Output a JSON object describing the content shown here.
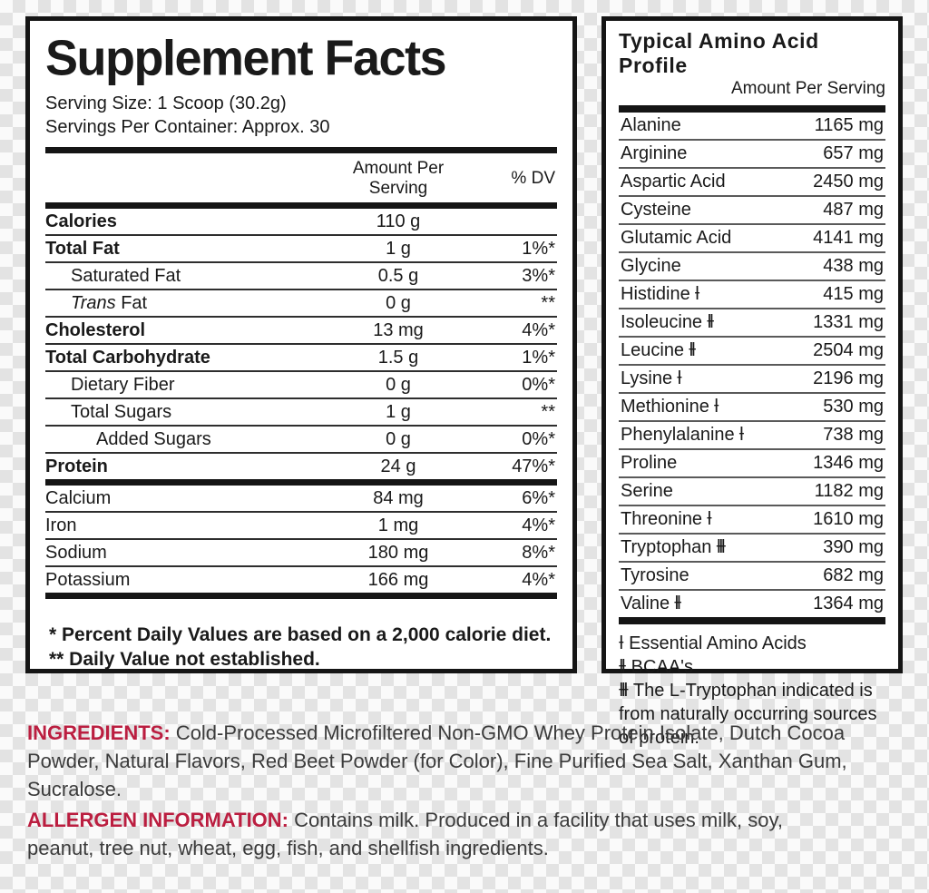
{
  "colors": {
    "accent_red": "#bb1e40",
    "ink": "#1a1a1a",
    "panel_bg": "#ffffff"
  },
  "supplement_facts": {
    "title": "Supplement Facts",
    "serving_size": "Serving Size: 1 Scoop (30.2g)",
    "servings_per_container": "Servings Per Container: Approx. 30",
    "col_amount_line1": "Amount Per",
    "col_amount_line2": "Serving",
    "col_dv": "% DV",
    "rows": [
      {
        "name": "Calories",
        "amount": "110 g",
        "dv": ""
      },
      {
        "name": "Total Fat",
        "amount": "1 g",
        "dv": "1%*"
      },
      {
        "name": "Saturated Fat",
        "amount": "0.5 g",
        "dv": "3%*"
      },
      {
        "name_italic": "Trans",
        "name": " Fat",
        "amount": "0 g",
        "dv": "**"
      },
      {
        "name": "Cholesterol",
        "amount": "13 mg",
        "dv": "4%*"
      },
      {
        "name": "Total Carbohydrate",
        "amount": "1.5 g",
        "dv": "1%*"
      },
      {
        "name": "Dietary Fiber",
        "amount": "0 g",
        "dv": "0%*"
      },
      {
        "name": "Total Sugars",
        "amount": "1 g",
        "dv": "**"
      },
      {
        "name": "Added Sugars",
        "amount": "0 g",
        "dv": "0%*"
      },
      {
        "name": "Protein",
        "amount": "24 g",
        "dv": "47%*"
      },
      {
        "name": "Calcium",
        "amount": "84 mg",
        "dv": "6%*"
      },
      {
        "name": "Iron",
        "amount": "1 mg",
        "dv": "4%*"
      },
      {
        "name": "Sodium",
        "amount": "180 mg",
        "dv": "8%*"
      },
      {
        "name": "Potassium",
        "amount": "166 mg",
        "dv": "4%*"
      }
    ],
    "footnote1": "* Percent Daily Values are based on a 2,000 calorie diet.",
    "footnote2": "** Daily Value not established."
  },
  "amino_profile": {
    "title": "Typical Amino Acid Profile",
    "subtitle": "Amount Per Serving",
    "rows": [
      {
        "name": "Alanine",
        "marker": "",
        "amount": "1165 mg"
      },
      {
        "name": "Arginine",
        "marker": "",
        "amount": "657 mg"
      },
      {
        "name": "Aspartic Acid",
        "marker": "",
        "amount": "2450 mg"
      },
      {
        "name": "Cysteine",
        "marker": "",
        "amount": "487 mg"
      },
      {
        "name": "Glutamic Acid",
        "marker": "",
        "amount": "4141 mg"
      },
      {
        "name": "Glycine",
        "marker": "",
        "amount": "438 mg"
      },
      {
        "name": "Histidine",
        "marker": "Ɨ",
        "amount": "415 mg"
      },
      {
        "name": "Isoleucine",
        "marker": "ƗƗ",
        "amount": "1331 mg"
      },
      {
        "name": "Leucine",
        "marker": "ƗƗ",
        "amount": "2504 mg"
      },
      {
        "name": "Lysine",
        "marker": "Ɨ",
        "amount": "2196 mg"
      },
      {
        "name": "Methionine",
        "marker": "Ɨ",
        "amount": "530 mg"
      },
      {
        "name": "Phenylalanine",
        "marker": "Ɨ",
        "amount": "738 mg"
      },
      {
        "name": "Proline",
        "marker": "",
        "amount": "1346 mg"
      },
      {
        "name": "Serine",
        "marker": "",
        "amount": "1182 mg"
      },
      {
        "name": "Threonine",
        "marker": "Ɨ",
        "amount": "1610 mg"
      },
      {
        "name": "Tryptophan",
        "marker": "ƗƗƗ",
        "amount": "390 mg"
      },
      {
        "name": "Tyrosine",
        "marker": "",
        "amount": "682 mg"
      },
      {
        "name": "Valine",
        "marker": "ƗƗ",
        "amount": "1364 mg"
      }
    ],
    "footnote1_marker": "Ɨ",
    "footnote1_text": " Essential Amino Acids",
    "footnote2_marker": "ƗƗ",
    "footnote2_text": " BCAA's",
    "footnote3_marker": "ƗƗƗ",
    "footnote3_text": " The L-Tryptophan indicated is from naturally occurring sources of protein."
  },
  "ingredients": {
    "label": "INGREDIENTS:",
    "text": " Cold-Processed Microfiltered Non-GMO Whey Protein Isolate, Dutch Cocoa Powder, Natural Flavors, Red Beet Powder (for Color), Fine Purified Sea Salt, Xanthan Gum, Sucralose."
  },
  "allergen": {
    "label": "ALLERGEN INFORMATION:",
    "text": " Contains milk. Produced in a facility that uses milk, soy, peanut, tree nut, wheat, egg, fish, and shellfish ingredients."
  }
}
